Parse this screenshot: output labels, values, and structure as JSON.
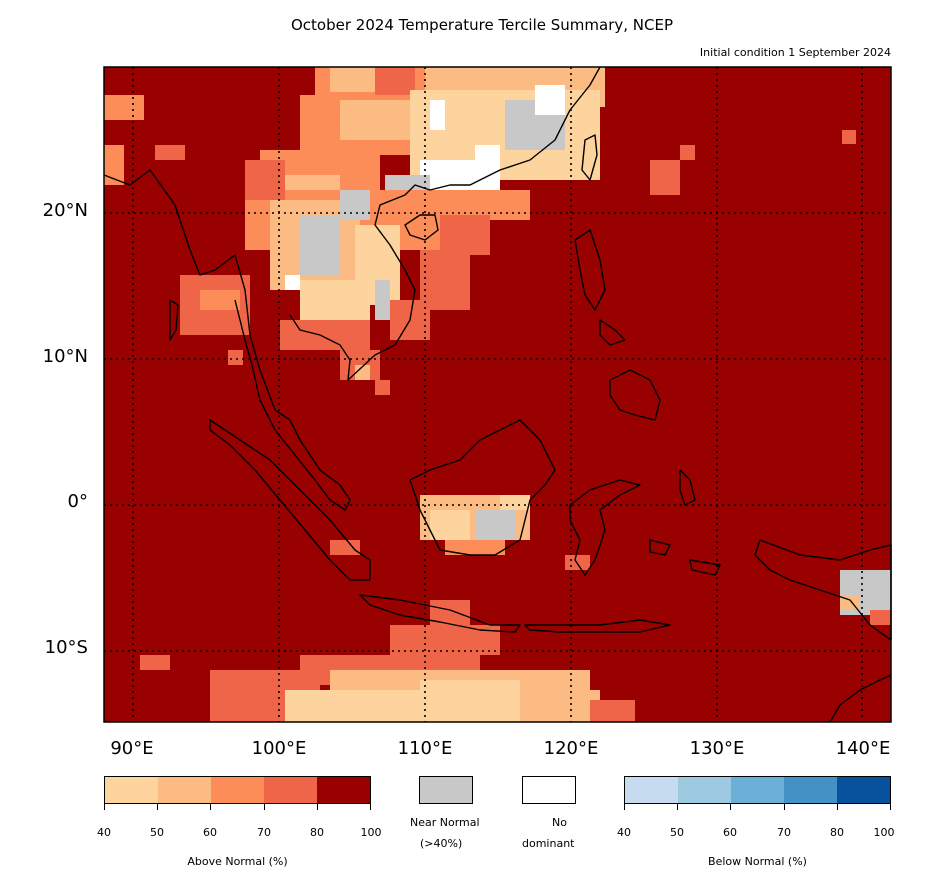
{
  "title": "October 2024 Temperature Tercile Summary, NCEP",
  "subtitle": "Initial condition 1 September 2024",
  "map": {
    "lat_labels": [
      "20°N",
      "10°N",
      "0°",
      "10°S"
    ],
    "lon_labels": [
      "90°E",
      "100°E",
      "110°E",
      "120°E",
      "130°E",
      "140°E"
    ],
    "background_category": "Above Normal 80-100%",
    "colors": {
      "above_40": "#fdd49e",
      "above_50": "#fdbb84",
      "above_60": "#fc8d59",
      "above_70": "#ef6548",
      "above_80": "#990000",
      "near_normal": "#c8c8c8",
      "no_dominant": "#ffffff",
      "below_40": "#c6dbef",
      "below_50": "#9ecae1",
      "below_60": "#6baed6",
      "below_70": "#4292c6",
      "below_80": "#08519c"
    }
  },
  "legend": {
    "above": {
      "label": "Above Normal (%)",
      "ticks": [
        "40",
        "50",
        "60",
        "70",
        "80",
        "100"
      ],
      "colors": [
        "#fdd49e",
        "#fdbb84",
        "#fc8d59",
        "#ef6548",
        "#990000"
      ]
    },
    "near_normal": {
      "label_line1": "Near Normal",
      "label_line2": "(>40%)",
      "color": "#c8c8c8"
    },
    "no_dominant": {
      "label_line1": "No",
      "label_line2": "dominant",
      "color": "#ffffff"
    },
    "below": {
      "label": "Below Normal (%)",
      "ticks": [
        "40",
        "50",
        "60",
        "70",
        "80",
        "100"
      ],
      "colors": [
        "#c6dbef",
        "#9ecae1",
        "#6baed6",
        "#4292c6",
        "#08519c"
      ]
    }
  }
}
